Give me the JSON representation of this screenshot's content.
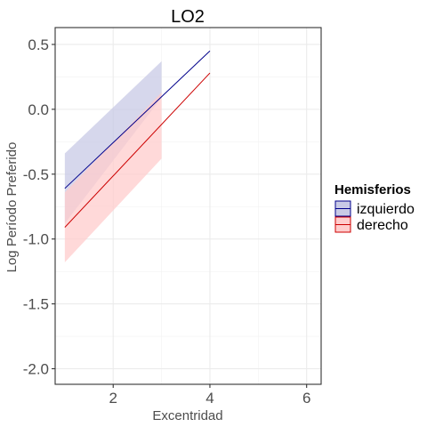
{
  "chart_data": {
    "type": "line",
    "title": "LO2",
    "xlabel": "Excentridad",
    "ylabel": "Log Período Preferido",
    "xlim": [
      0.8,
      6.3
    ],
    "ylim": [
      -2.12,
      0.63
    ],
    "x_ticks": [
      2,
      4,
      6
    ],
    "x_tick_labels": [
      "2",
      "4",
      "6"
    ],
    "y_ticks": [
      0.5,
      0.0,
      -0.5,
      -1.0,
      -1.5,
      -2.0
    ],
    "y_tick_labels": [
      "0.5",
      "0.0",
      "-0.5",
      "-1.0",
      "-1.5",
      "-2.0"
    ],
    "grid": true,
    "legend": {
      "title": "Hemisferios",
      "position": "right"
    },
    "series": [
      {
        "name": "izquierdo",
        "line_color": "#00008b",
        "fill_color": "#c8cae6",
        "line": {
          "x": [
            1.0,
            4.0
          ],
          "y": [
            -0.61,
            0.45
          ]
        },
        "band": {
          "x": [
            1.0,
            3.0
          ],
          "upper": [
            -0.34,
            0.37
          ],
          "lower": [
            -0.88,
            0.09
          ]
        }
      },
      {
        "name": "derecho",
        "line_color": "#cc0000",
        "fill_color": "#ffcccc",
        "line": {
          "x": [
            1.0,
            4.0
          ],
          "y": [
            -0.91,
            0.28
          ]
        },
        "band": {
          "x": [
            1.0,
            3.0
          ],
          "upper": [
            -0.64,
            0.13
          ],
          "lower": [
            -1.18,
            -0.38
          ]
        }
      }
    ]
  }
}
